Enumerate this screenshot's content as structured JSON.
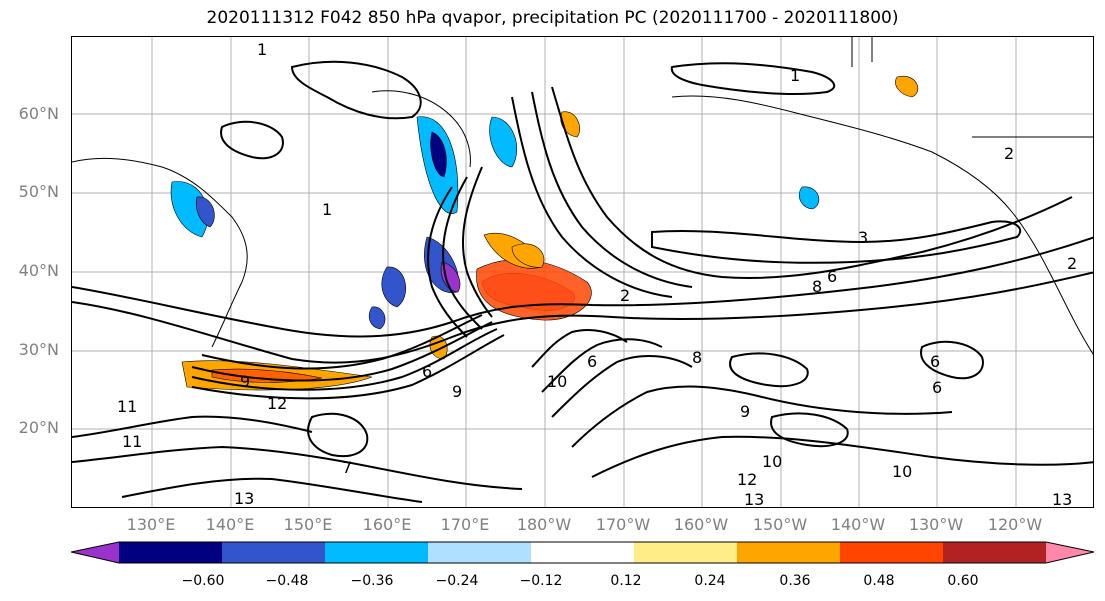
{
  "title": "2020111312 F042 850 hPa qvapor, precipitation PC (2020111700 - 2020111800)",
  "lat_labels": [
    "60°N",
    "50°N",
    "40°N",
    "30°N",
    "20°N"
  ],
  "lon_labels": [
    "130°E",
    "140°E",
    "150°E",
    "160°E",
    "170°E",
    "180°W",
    "170°W",
    "160°W",
    "150°W",
    "140°W",
    "130°W",
    "120°W"
  ],
  "colorbar": {
    "colors": [
      "#9933cc",
      "#000080",
      "#3355cc",
      "#00bbff",
      "#b0e0ff",
      "#ffffff",
      "#ffee88",
      "#ffa500",
      "#ff4500",
      "#b22222",
      "#ff88aa"
    ],
    "tick_labels": [
      "−0.60",
      "−0.48",
      "−0.36",
      "−0.24",
      "−0.12",
      "0.12",
      "0.24",
      "0.36",
      "0.48",
      "0.60"
    ]
  },
  "contour_labels": [
    "1",
    "1",
    "1",
    "2",
    "2",
    "2",
    "3",
    "6",
    "6",
    "6",
    "6",
    "6",
    "7",
    "8",
    "8",
    "9",
    "9",
    "9",
    "10",
    "10",
    "10",
    "11",
    "11",
    "12",
    "12",
    "13",
    "13",
    "13"
  ]
}
